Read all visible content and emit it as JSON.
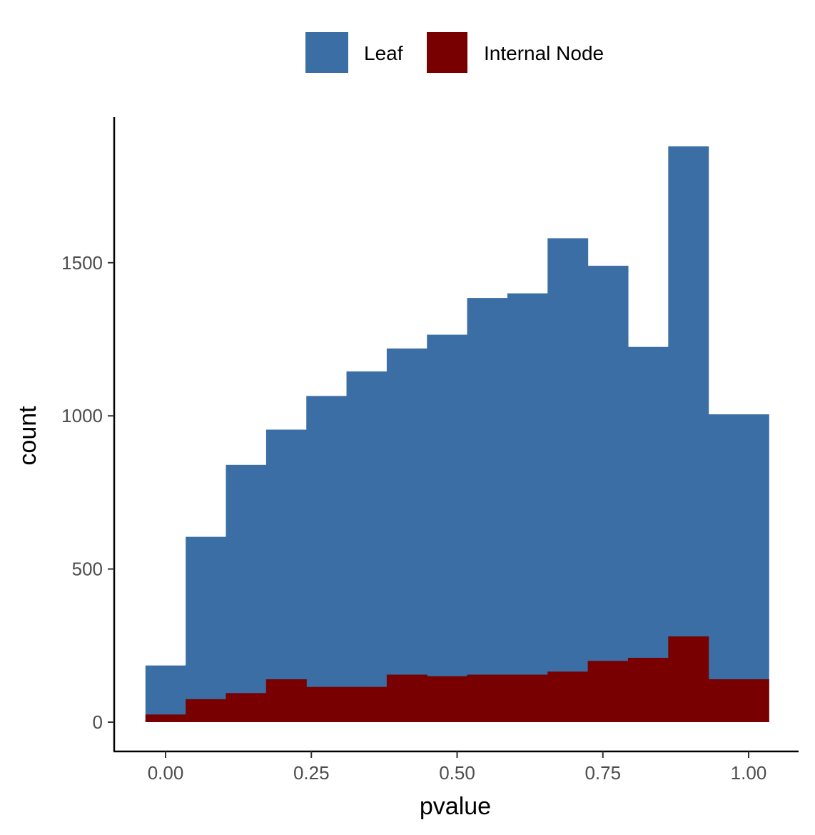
{
  "chart_data": {
    "type": "bar",
    "subtype": "overlaid-histogram",
    "title": "",
    "xlabel": "pvalue",
    "ylabel": "count",
    "xlim": [
      -0.0345,
      1.0345
    ],
    "ylim": [
      0,
      1880
    ],
    "x_ticks": [
      0,
      0.25,
      0.5,
      0.75,
      1
    ],
    "x_tick_labels": [
      "0.00",
      "0.25",
      "0.50",
      "0.75",
      "1.00"
    ],
    "y_ticks": [
      0,
      500,
      1000,
      1500
    ],
    "y_tick_labels": [
      "0",
      "500",
      "1000",
      "1500"
    ],
    "bins": [
      [
        -0.0345,
        0.0345
      ],
      [
        0.0345,
        0.1034
      ],
      [
        0.1034,
        0.1724
      ],
      [
        0.1724,
        0.2414
      ],
      [
        0.2414,
        0.3103
      ],
      [
        0.3103,
        0.3793
      ],
      [
        0.3793,
        0.4483
      ],
      [
        0.4483,
        0.5172
      ],
      [
        0.5172,
        0.5862
      ],
      [
        0.5862,
        0.6552
      ],
      [
        0.6552,
        0.7241
      ],
      [
        0.7241,
        0.7931
      ],
      [
        0.7931,
        0.8621
      ],
      [
        0.8621,
        0.931
      ],
      [
        0.931,
        1.0
      ],
      [
        1.0,
        1.0345
      ]
    ],
    "series": [
      {
        "name": "Leaf",
        "color": "#3A6EA5",
        "values": [
          185,
          605,
          840,
          955,
          1065,
          1145,
          1220,
          1265,
          1385,
          1400,
          1580,
          1490,
          1225,
          1880,
          1005,
          1005
        ]
      },
      {
        "name": "Internal Node",
        "color": "#780000",
        "values": [
          25,
          75,
          95,
          140,
          115,
          115,
          155,
          150,
          155,
          155,
          165,
          200,
          210,
          280,
          140,
          140
        ]
      }
    ],
    "legend": {
      "position": "top",
      "entries": [
        "Leaf",
        "Internal Node"
      ]
    },
    "grid": false
  }
}
